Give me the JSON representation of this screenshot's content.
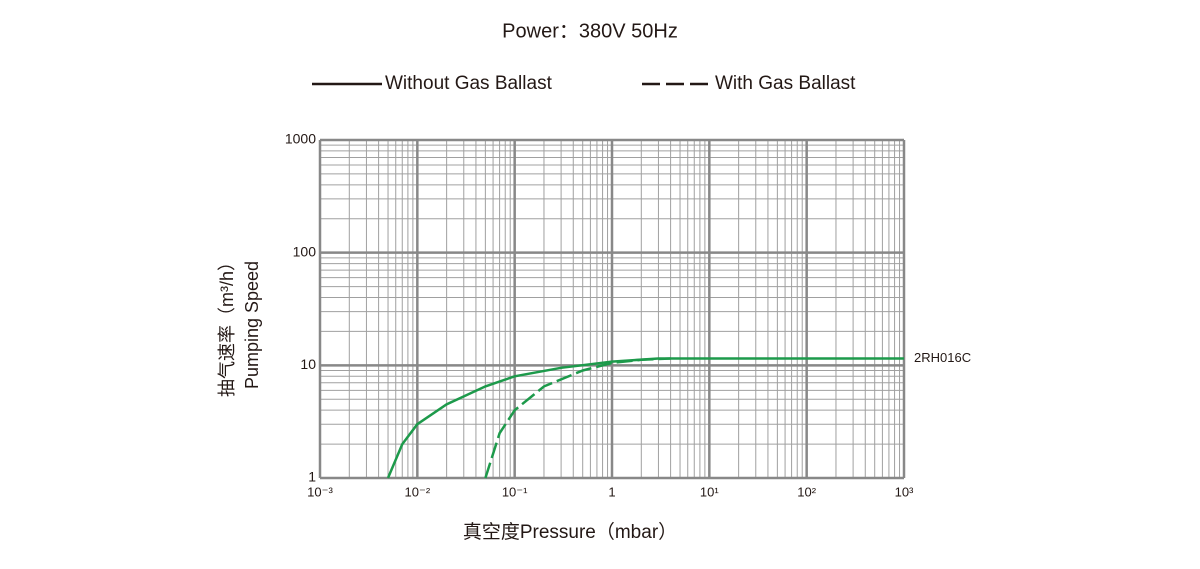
{
  "chart_data": {
    "type": "line",
    "title": "Power：380V 50Hz",
    "x_label": "真空度Pressure（mbar）",
    "y_label": [
      "抽气速率（m³/h）",
      "Pumping Speed"
    ],
    "annotation": "2RH016C",
    "log_x": true,
    "log_y": true,
    "grid": true,
    "legend_position": "top",
    "legend_color": "#231815",
    "xlim": [
      0.001,
      1000
    ],
    "ylim": [
      1,
      1000
    ],
    "xticks": [
      {
        "value": 0.001,
        "label": "10⁻³"
      },
      {
        "value": 0.01,
        "label": "10⁻²"
      },
      {
        "value": 0.1,
        "label": "10⁻¹"
      },
      1,
      {
        "value": 10,
        "label": "10¹"
      },
      {
        "value": 100,
        "label": "10²"
      },
      {
        "value": 1000,
        "label": "10³"
      }
    ],
    "yticks": [
      1,
      10,
      100,
      1000
    ],
    "series": [
      {
        "name": "Without Gas Ballast",
        "color": "#1d9a4b",
        "dashed": false,
        "x": [
          0.005,
          0.007,
          0.01,
          0.02,
          0.05,
          0.1,
          0.3,
          1,
          3,
          10,
          100,
          1000
        ],
        "values": [
          1,
          2,
          3,
          4.5,
          6.5,
          8,
          9.5,
          10.8,
          11.5,
          11.5,
          11.5,
          11.5
        ]
      },
      {
        "name": "With Gas Ballast",
        "color": "#1d9a4b",
        "dashed": true,
        "x": [
          0.05,
          0.07,
          0.1,
          0.2,
          0.5,
          1,
          2,
          4
        ],
        "values": [
          1,
          2.5,
          4,
          6.5,
          9,
          10.5,
          11.2,
          11.5
        ]
      }
    ]
  }
}
